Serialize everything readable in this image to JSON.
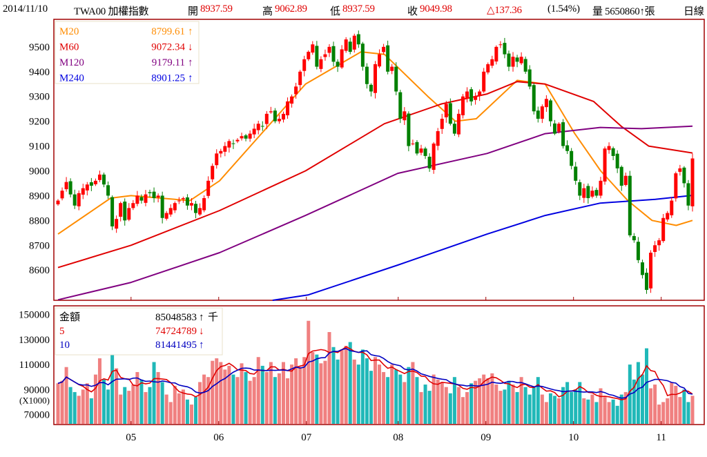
{
  "header": {
    "date": "2014/11/10",
    "symbol": "TWA00 加權指數",
    "open_label": "開",
    "open": "8937.59",
    "high_label": "高",
    "high": "9062.89",
    "low_label": "低",
    "low": "8937.59",
    "close_label": "收",
    "close": "9049.98",
    "change": "△137.36",
    "change_pct": "(1.54%)",
    "volume_label": "量",
    "volume": "5650860↑張",
    "period": "日線"
  },
  "colors": {
    "up": "#ff0000",
    "down": "#008000",
    "vol_up": "#f08080",
    "vol_down": "#20b8b8",
    "m20": "#ff8c00",
    "m60": "#e00000",
    "m120": "#800080",
    "m240": "#0000e0",
    "frame": "#a00000"
  },
  "chart_data": [
    {
      "type": "candlestick",
      "title": "TWA00 加權指數 日線",
      "ylim": [
        8478,
        9611
      ],
      "yticks": [
        "9500",
        "9400",
        "9300",
        "9200",
        "9100",
        "9000",
        "8900",
        "8800",
        "8700",
        "8600"
      ],
      "month_ticks": [
        {
          "label": "05",
          "index": 18
        },
        {
          "label": "06",
          "index": 39
        },
        {
          "label": "07",
          "index": 60
        },
        {
          "label": "08",
          "index": 82
        },
        {
          "label": "09",
          "index": 103
        },
        {
          "label": "10",
          "index": 124
        },
        {
          "label": "11",
          "index": 145
        }
      ],
      "close": [
        8880,
        8920,
        8955,
        8905,
        8860,
        8910,
        8930,
        8945,
        8940,
        8960,
        8985,
        8945,
        8900,
        8776,
        8806,
        8870,
        8800,
        8850,
        8870,
        8900,
        8880,
        8905,
        8910,
        8890,
        8900,
        8810,
        8830,
        8850,
        8870,
        8880,
        8890,
        8860,
        8870,
        8830,
        8850,
        8890,
        8960,
        9020,
        9070,
        9080,
        9100,
        9120,
        9110,
        9125,
        9140,
        9130,
        9150,
        9170,
        9190,
        9180,
        9230,
        9240,
        9200,
        9210,
        9230,
        9280,
        9300,
        9340,
        9400,
        9450,
        9480,
        9510,
        9420,
        9450,
        9470,
        9500,
        9440,
        9420,
        9490,
        9530,
        9480,
        9545,
        9510,
        9420,
        9350,
        9320,
        9430,
        9470,
        9500,
        9400,
        9420,
        9320,
        9210,
        9240,
        9100,
        9110,
        9070,
        9090,
        9060,
        9010,
        9110,
        9160,
        9210,
        9270,
        9190,
        9150,
        9230,
        9300,
        9320,
        9280,
        9300,
        9320,
        9400,
        9430,
        9450,
        9500,
        9510,
        9470,
        9420,
        9460,
        9440,
        9460,
        9400,
        9340,
        9240,
        9210,
        9260,
        9290,
        9200,
        9150,
        9190,
        9100,
        9080,
        9020,
        8960,
        8900,
        8930,
        8890,
        8920,
        8900,
        8960,
        9090,
        9100,
        9060,
        9010,
        8940,
        8980,
        8740,
        8720,
        8640,
        8580,
        8520,
        8670,
        8700,
        8720,
        8810,
        8830,
        8880,
        8990,
        9010,
        8950,
        8860,
        9049.98
      ],
      "legend": [
        {
          "name": "M20",
          "value": "8799.61",
          "arrow": "↑",
          "color": "#ff8c00"
        },
        {
          "name": "M60",
          "value": "9072.34",
          "arrow": "↓",
          "color": "#e00000"
        },
        {
          "name": "M120",
          "value": "9179.11",
          "arrow": "↑",
          "color": "#800080"
        },
        {
          "name": "M240",
          "value": "8901.25",
          "arrow": "↑",
          "color": "#0000e0"
        }
      ],
      "moving_averages": {
        "M20": [
          [
            0,
            8745
          ],
          [
            12.6,
            8890
          ],
          [
            17.5,
            8900
          ],
          [
            31.6,
            8880
          ],
          [
            38.7,
            8960
          ],
          [
            59.3,
            9350
          ],
          [
            72.6,
            9480
          ],
          [
            78.2,
            9470
          ],
          [
            88.6,
            9300
          ],
          [
            95.2,
            9200
          ],
          [
            100.2,
            9210
          ],
          [
            110,
            9365
          ],
          [
            116.7,
            9350
          ],
          [
            123.8,
            9150
          ],
          [
            130,
            9000
          ],
          [
            136.5,
            8880
          ],
          [
            142.3,
            8800
          ],
          [
            148.1,
            8780
          ],
          [
            152,
            8800
          ]
        ],
        "M60": [
          [
            0,
            8610
          ],
          [
            17.5,
            8700
          ],
          [
            38.7,
            8840
          ],
          [
            59.3,
            9000
          ],
          [
            78.2,
            9190
          ],
          [
            91.9,
            9270
          ],
          [
            102.8,
            9310
          ],
          [
            110,
            9360
          ],
          [
            116.7,
            9350
          ],
          [
            128.3,
            9280
          ],
          [
            134.9,
            9180
          ],
          [
            141.5,
            9100
          ],
          [
            152,
            9072
          ]
        ],
        "M120": [
          [
            0,
            8480
          ],
          [
            17.5,
            8550
          ],
          [
            38.7,
            8670
          ],
          [
            59.3,
            8820
          ],
          [
            81.4,
            8990
          ],
          [
            102.8,
            9070
          ],
          [
            116.7,
            9150
          ],
          [
            129.9,
            9175
          ],
          [
            139.8,
            9170
          ],
          [
            152,
            9180
          ]
        ],
        "M240": [
          [
            51.4,
            8478
          ],
          [
            60,
            8500
          ],
          [
            81.4,
            8620
          ],
          [
            102.8,
            8745
          ],
          [
            116.7,
            8820
          ],
          [
            129.9,
            8870
          ],
          [
            143.1,
            8885
          ],
          [
            152,
            8901
          ]
        ]
      }
    },
    {
      "type": "bar",
      "title": "金額",
      "ylim": [
        62000,
        157000
      ],
      "yticks": [
        "150000",
        "130000",
        "110000",
        "90000",
        "70000"
      ],
      "unit_label": "(X1000)",
      "legend": [
        {
          "name": "金額",
          "value": "85048583",
          "arrow": "↑",
          "unit": "千",
          "color": "#000000"
        },
        {
          "name": "5",
          "value": "74724789",
          "arrow": "↓",
          "unit": "",
          "color": "#e00000"
        },
        {
          "name": "10",
          "value": "81441495",
          "arrow": "↑",
          "unit": "",
          "color": "#0000c0"
        }
      ],
      "values": [
        95000,
        97000,
        108000,
        92000,
        88000,
        85000,
        90000,
        95000,
        83000,
        102000,
        115000,
        98000,
        90000,
        118000,
        107000,
        86000,
        92000,
        89000,
        94000,
        104000,
        98000,
        88000,
        92000,
        112000,
        104000,
        96000,
        86000,
        80000,
        93000,
        87000,
        90000,
        82000,
        78000,
        84000,
        96000,
        102000,
        100000,
        113000,
        115000,
        112000,
        106000,
        109000,
        102000,
        100000,
        111000,
        104000,
        97000,
        100000,
        116000,
        109000,
        104000,
        112000,
        100000,
        103000,
        112000,
        99000,
        110000,
        115000,
        108000,
        116000,
        145000,
        120000,
        118000,
        111000,
        113000,
        136000,
        124000,
        114000,
        122000,
        125000,
        128000,
        114000,
        110000,
        122000,
        115000,
        105000,
        116000,
        110000,
        104000,
        100000,
        110000,
        106000,
        102000,
        96000,
        108000,
        112000,
        100000,
        88000,
        94000,
        89000,
        102000,
        98000,
        96000,
        92000,
        87000,
        100000,
        92000,
        84000,
        88000,
        95000,
        97000,
        99000,
        102000,
        99000,
        103000,
        94000,
        89000,
        90000,
        97000,
        94000,
        88000,
        100000,
        92000,
        86000,
        92000,
        100000,
        86000,
        80000,
        87000,
        85000,
        83000,
        92000,
        96000,
        88000,
        90000,
        96000,
        83000,
        82000,
        86000,
        80000,
        91000,
        84000,
        80000,
        82000,
        77000,
        86000,
        88000,
        110000,
        98000,
        112000,
        102000,
        123000,
        91000,
        94000,
        78000,
        80000,
        83000,
        96000,
        93000,
        84000,
        90000,
        80000,
        85000
      ]
    }
  ]
}
